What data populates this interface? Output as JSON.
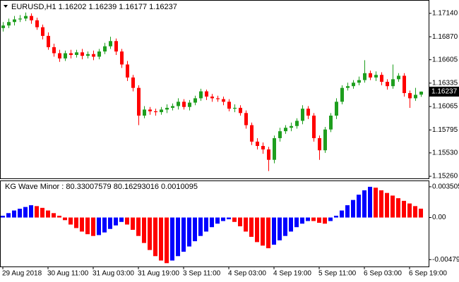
{
  "chart_data": [
    {
      "type": "candlestick",
      "symbol": "EURUSD,H1",
      "categories": [
        "29 Aug 2018",
        null,
        null,
        null,
        null,
        null,
        null,
        null,
        "30 Aug 11:00",
        null,
        null,
        null,
        null,
        null,
        null,
        null,
        "31 Aug 03:00",
        null,
        null,
        null,
        null,
        null,
        null,
        null,
        "31 Aug 19:00",
        null,
        null,
        null,
        null,
        null,
        null,
        null,
        "3 Sep 11:00",
        null,
        null,
        null,
        null,
        null,
        null,
        null,
        "4 Sep 03:00",
        null,
        null,
        null,
        null,
        null,
        null,
        null,
        "4 Sep 19:00",
        null,
        null,
        null,
        null,
        null,
        null,
        null,
        "5 Sep 11:00",
        null,
        null,
        null,
        null,
        null,
        null,
        null,
        "6 Sep 03:00",
        null,
        null,
        null,
        null,
        null,
        null,
        null,
        "6 Sep 19:00",
        null,
        null
      ],
      "open": [
        1.1697,
        1.17,
        1.1704,
        1.1707,
        1.1708,
        1.1711,
        1.1706,
        1.1698,
        1.1688,
        1.1675,
        1.1668,
        1.1662,
        1.1668,
        1.1666,
        1.1669,
        1.1665,
        1.1667,
        1.1664,
        1.167,
        1.1676,
        1.1682,
        1.167,
        1.1655,
        1.164,
        1.1628,
        1.1596,
        1.1603,
        1.1601,
        1.16,
        1.1603,
        1.1605,
        1.1607,
        1.1612,
        1.1606,
        1.1611,
        1.1616,
        1.1624,
        1.1618,
        1.1616,
        1.1615,
        1.1612,
        1.1604,
        1.1605,
        1.1599,
        1.1585,
        1.1566,
        1.1561,
        1.1557,
        1.1545,
        1.157,
        1.1578,
        1.1582,
        1.1584,
        1.159,
        1.1604,
        1.1596,
        1.157,
        1.1556,
        1.158,
        1.1596,
        1.1612,
        1.1628,
        1.163,
        1.1634,
        1.1637,
        1.1645,
        1.164,
        1.1643,
        1.1635,
        1.163,
        1.1638,
        1.1642,
        1.1622,
        1.1616,
        1.16202
      ],
      "high": [
        1.1704,
        1.1708,
        1.1711,
        1.1712,
        1.1715,
        1.1714,
        1.1709,
        1.1701,
        1.1692,
        1.1679,
        1.1672,
        1.1671,
        1.1672,
        1.1672,
        1.1673,
        1.167,
        1.1671,
        1.1673,
        1.168,
        1.1687,
        1.1685,
        1.1673,
        1.1659,
        1.1643,
        1.1631,
        1.1607,
        1.1606,
        1.1604,
        1.1606,
        1.1609,
        1.161,
        1.1616,
        1.1615,
        1.1614,
        1.1619,
        1.1627,
        1.1626,
        1.1621,
        1.1619,
        1.1618,
        1.1615,
        1.1609,
        1.1608,
        1.1602,
        1.1588,
        1.157,
        1.1565,
        1.156,
        1.1573,
        1.1582,
        1.1585,
        1.1588,
        1.1593,
        1.1608,
        1.1607,
        1.1599,
        1.1573,
        1.1583,
        1.1599,
        1.1616,
        1.1631,
        1.1634,
        1.1637,
        1.1641,
        1.166,
        1.1648,
        1.1647,
        1.1646,
        1.1638,
        1.1655,
        1.1645,
        1.1645,
        1.1625,
        1.1628,
        1.16239
      ],
      "low": [
        1.1693,
        1.1697,
        1.17,
        1.1704,
        1.1705,
        1.1702,
        1.1695,
        1.1684,
        1.1672,
        1.1664,
        1.1658,
        1.1659,
        1.1662,
        1.1663,
        1.1661,
        1.1662,
        1.166,
        1.1661,
        1.1667,
        1.1673,
        1.1666,
        1.1651,
        1.1636,
        1.1624,
        1.1585,
        1.1593,
        1.1597,
        1.1596,
        1.1597,
        1.1599,
        1.1602,
        1.1603,
        1.1603,
        1.1602,
        1.1608,
        1.1613,
        1.1614,
        1.1612,
        1.1612,
        1.1608,
        1.1601,
        1.16,
        1.1596,
        1.1581,
        1.1562,
        1.1557,
        1.1552,
        1.1532,
        1.1541,
        1.1566,
        1.1575,
        1.1578,
        1.1581,
        1.1586,
        1.1592,
        1.1566,
        1.1545,
        1.1553,
        1.1577,
        1.1592,
        1.1609,
        1.1625,
        1.1627,
        1.1631,
        1.1634,
        1.1637,
        1.1636,
        1.1631,
        1.1626,
        1.1627,
        1.1635,
        1.1618,
        1.1605,
        1.1613,
        1.16177
      ],
      "close": [
        1.17,
        1.1704,
        1.1707,
        1.1708,
        1.1711,
        1.1706,
        1.1698,
        1.1688,
        1.1675,
        1.1668,
        1.1662,
        1.1668,
        1.1666,
        1.1669,
        1.1665,
        1.1667,
        1.1664,
        1.167,
        1.1676,
        1.1682,
        1.167,
        1.1655,
        1.164,
        1.1628,
        1.1596,
        1.1603,
        1.1601,
        1.16,
        1.1603,
        1.1605,
        1.1607,
        1.1612,
        1.1606,
        1.1611,
        1.1616,
        1.1624,
        1.1618,
        1.1616,
        1.1615,
        1.1612,
        1.1604,
        1.1605,
        1.1599,
        1.1585,
        1.1566,
        1.1561,
        1.1557,
        1.1545,
        1.157,
        1.1578,
        1.1582,
        1.1584,
        1.159,
        1.1604,
        1.1596,
        1.157,
        1.1556,
        1.158,
        1.1596,
        1.1612,
        1.1628,
        1.163,
        1.1634,
        1.1637,
        1.1645,
        1.164,
        1.1643,
        1.1635,
        1.163,
        1.1638,
        1.1642,
        1.1622,
        1.1616,
        1.162,
        1.16237
      ],
      "up_color": "#1e9e1e",
      "down_color": "#ff0000",
      "ylim": [
        1.15236,
        1.17286
      ],
      "yticks": [
        {
          "value": 1.1714,
          "label": "1.17140"
        },
        {
          "value": 1.1687,
          "label": "1.16870"
        },
        1.16605,
        1.16335,
        1.16065,
        1.15795,
        {
          "value": 1.1553,
          "label": "1.15530"
        },
        {
          "value": 1.1526,
          "label": "1.15260"
        }
      ],
      "grid": false
    },
    {
      "type": "bar",
      "title": "KG Wave Minor :",
      "title_values": [
        80.33007579,
        80.16293016
      ],
      "series": [
        {
          "color": "#0000ff",
          "values": [
            0.0002,
            0.0005,
            0.0008,
            0.001,
            0.0012,
            0.0014,
            null,
            null,
            null,
            null,
            null,
            null,
            null,
            null,
            null,
            null,
            null,
            -0.002,
            -0.0017,
            -0.0013,
            -0.0009,
            -0.0005,
            null,
            null,
            null,
            null,
            null,
            null,
            null,
            null,
            -0.0049,
            -0.0044,
            -0.0039,
            -0.0033,
            -0.0027,
            -0.0021,
            -0.0016,
            -0.0011,
            -0.0007,
            -0.0004,
            -0.0002,
            null,
            null,
            null,
            null,
            null,
            null,
            null,
            -0.0031,
            -0.0026,
            -0.0021,
            -0.0016,
            -0.0011,
            -0.0007,
            -0.0004,
            null,
            null,
            null,
            -0.0004,
            0.0002,
            0.0008,
            0.0014,
            0.002,
            0.0026,
            0.0031,
            0.0035,
            null,
            null,
            null,
            null,
            null,
            null,
            null,
            null,
            null
          ]
        },
        {
          "color": "#ff0000",
          "values": [
            null,
            null,
            null,
            null,
            null,
            null,
            0.0013,
            0.0011,
            0.0008,
            0.0005,
            0.0002,
            -0.0003,
            -0.0008,
            -0.0012,
            -0.0016,
            -0.0019,
            -0.0021,
            null,
            null,
            null,
            null,
            null,
            -0.0008,
            -0.0014,
            -0.0021,
            -0.0029,
            -0.0037,
            -0.0044,
            -0.0049,
            -0.0052,
            null,
            null,
            null,
            null,
            null,
            null,
            null,
            null,
            null,
            null,
            null,
            -0.0005,
            -0.001,
            -0.0016,
            -0.0022,
            -0.0028,
            -0.0032,
            -0.0035,
            null,
            null,
            null,
            null,
            null,
            null,
            null,
            -0.0004,
            -0.0006,
            -0.0007,
            null,
            null,
            null,
            null,
            null,
            null,
            null,
            null,
            0.0034,
            0.0031,
            0.0028,
            0.0025,
            0.0022,
            0.0019,
            0.0016,
            0.0013,
            0.0010095
          ]
        }
      ],
      "ylim": [
        -0.00558,
        0.00414
      ],
      "yticks": [
        0.003505,
        {
          "value": 0,
          "label": "0.00"
        },
        -0.004795
      ],
      "grid": false
    }
  ]
}
